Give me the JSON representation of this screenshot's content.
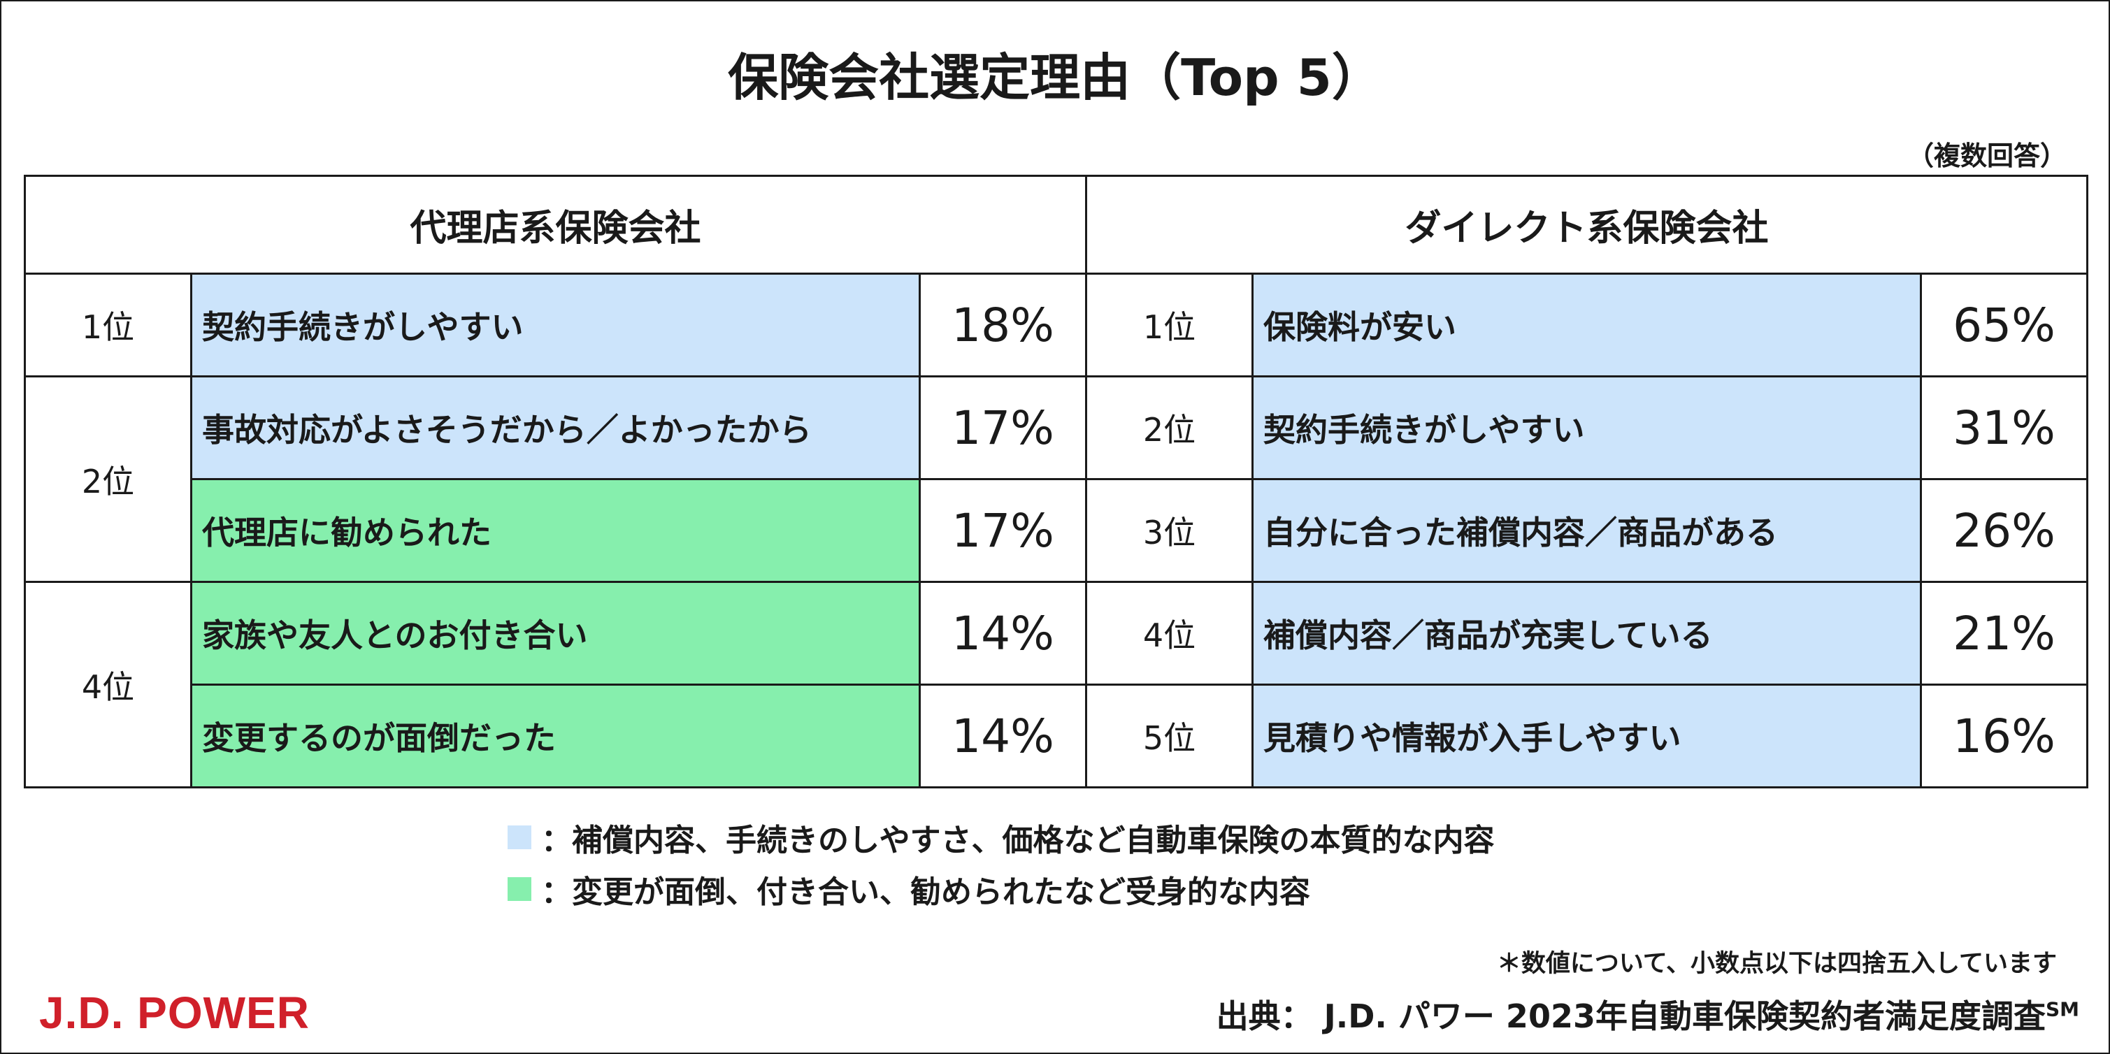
{
  "title": "保険会社選定理由（Top 5）",
  "note_multiple": "（複数回答）",
  "agency": {
    "header": "代理店系保険会社",
    "rows": [
      {
        "rank": "1位",
        "reason": "契約手続きがしやすい",
        "pct": "18%",
        "color": "blue"
      },
      {
        "rank": "2位",
        "reason": "事故対応がよさそうだから／よかったから",
        "pct": "17%",
        "color": "blue"
      },
      {
        "rank": "",
        "reason": "代理店に勧められた",
        "pct": "17%",
        "color": "green"
      },
      {
        "rank": "4位",
        "reason": "家族や友人とのお付き合い",
        "pct": "14%",
        "color": "green"
      },
      {
        "rank": "",
        "reason": "変更するのが面倒だった",
        "pct": "14%",
        "color": "green"
      }
    ]
  },
  "direct": {
    "header": "ダイレクト系保険会社",
    "rows": [
      {
        "rank": "1位",
        "reason": "保険料が安い",
        "pct": "65%",
        "color": "blue"
      },
      {
        "rank": "2位",
        "reason": "契約手続きがしやすい",
        "pct": "31%",
        "color": "blue"
      },
      {
        "rank": "3位",
        "reason": "自分に合った補償内容／商品がある",
        "pct": "26%",
        "color": "blue"
      },
      {
        "rank": "4位",
        "reason": "補償内容／商品が充実している",
        "pct": "21%",
        "color": "blue"
      },
      {
        "rank": "5位",
        "reason": "見積りや情報が入手しやすい",
        "pct": "16%",
        "color": "blue"
      }
    ]
  },
  "legend": [
    {
      "color": "#cce4fb",
      "text": "：補償内容、手続きのしやすさ、価格など自動車保険の本質的な内容"
    },
    {
      "color": "#86efad",
      "text": "：変更が面倒、付き合い、勧められたなど受身的な内容"
    }
  ],
  "colors": {
    "blue": "#cce4fb",
    "green": "#86efad",
    "logo": "#d0202a"
  },
  "footnote": "＊数値について、小数点以下は四捨五入しています",
  "source": {
    "text": "出典： J.D. パワー 2023年自動車保険契約者満足度調査",
    "sup": "SM"
  },
  "logo": "J.D. POWER"
}
